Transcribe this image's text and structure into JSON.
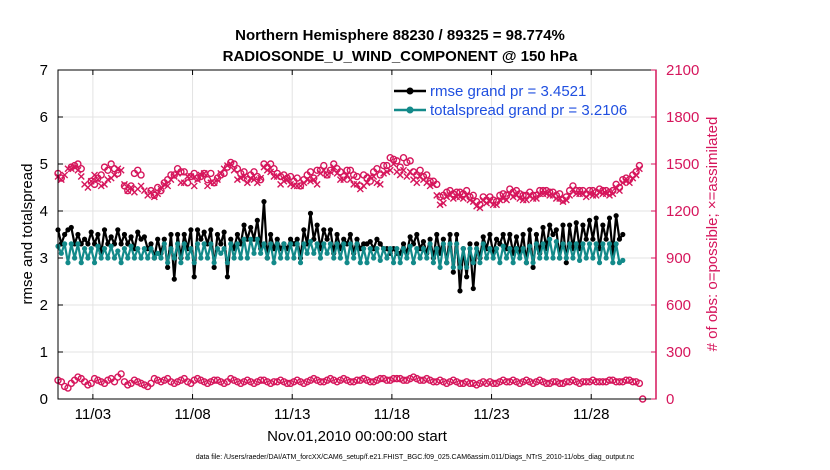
{
  "chart_data": {
    "type": "line",
    "title": "Northern Hemisphere 88230 / 89325 = 98.774%",
    "subtitle": "RADIOSONDE_U_WIND_COMPONENT @ 150 hPa",
    "xlabel": "Nov.01,2010 00:00:00 start",
    "ylabel": "rmse and totalspread",
    "y2label": "# of obs: o=possible; ×=assimilated",
    "footnote": "data file: /Users/raeder/DAI/ATM_forcXX/CAM6_setup/f.e21.FHIST_BGC.f09_025.CAM6assim.011/Diags_NTrS_2010-11/obs_diag_output.nc",
    "xlim": [
      1.25,
      31.25
    ],
    "ylim": [
      0,
      7
    ],
    "y2lim": [
      0,
      2100
    ],
    "x_ticks": [
      3,
      8,
      13,
      18,
      23,
      28
    ],
    "x_tick_labels": [
      "11/03",
      "11/08",
      "11/13",
      "11/18",
      "11/23",
      "11/28"
    ],
    "y_ticks": [
      0,
      1,
      2,
      3,
      4,
      5,
      6,
      7
    ],
    "y2_ticks": [
      0,
      300,
      600,
      900,
      1200,
      1500,
      1800,
      2100
    ],
    "legend_location": "top-right",
    "colors": {
      "rmse": "#000000",
      "spread": "#138a8a",
      "obs": "#d6165c",
      "legend_text": "#1f4fe0"
    },
    "series": [
      {
        "name": "rmse grand pr = 3.4521",
        "axis": "left",
        "values": [
          3.6,
          3.3,
          3.5,
          3.6,
          3.65,
          3.3,
          3.5,
          3.3,
          3.4,
          3.3,
          3.55,
          3.3,
          3.5,
          3.1,
          3.6,
          3.3,
          3.45,
          3.3,
          3.6,
          3.3,
          3.5,
          3.3,
          3.45,
          3.2,
          3.55,
          3.4,
          3.45,
          3.2,
          3.3,
          3.0,
          3.4,
          3.1,
          3.4,
          2.8,
          3.5,
          2.55,
          3.5,
          3.0,
          3.5,
          3.2,
          3.6,
          2.6,
          3.6,
          3.4,
          3.55,
          3.3,
          3.6,
          2.8,
          3.5,
          3.3,
          3.55,
          2.6,
          3.4,
          3.2,
          3.5,
          3.3,
          3.7,
          3.4,
          3.65,
          3.4,
          3.8,
          3.2,
          4.2,
          3.0,
          3.5,
          3.2,
          3.4,
          3.2,
          3.3,
          3.2,
          3.4,
          3.3,
          3.4,
          3.0,
          3.6,
          3.3,
          3.95,
          3.4,
          3.7,
          3.2,
          3.6,
          3.4,
          3.6,
          3.1,
          3.5,
          3.2,
          3.4,
          3.3,
          3.5,
          3.1,
          3.4,
          3.2,
          3.3,
          3.3,
          3.35,
          3.2,
          3.4,
          3.3,
          3.2,
          3.2,
          3.1,
          3.2,
          3.1,
          3.1,
          3.3,
          3.1,
          3.45,
          3.3,
          3.5,
          3.2,
          3.35,
          3.1,
          3.4,
          3.0,
          3.5,
          3.1,
          3.4,
          2.9,
          3.5,
          2.7,
          3.5,
          2.3,
          3.2,
          2.6,
          3.3,
          2.35,
          3.3,
          3.0,
          3.45,
          3.2,
          3.5,
          3.1,
          3.4,
          3.3,
          3.5,
          3.2,
          3.5,
          3.1,
          3.45,
          3.1,
          3.5,
          2.9,
          3.6,
          2.8,
          3.5,
          3.1,
          3.65,
          3.2,
          3.7,
          3.5,
          3.6,
          3.0,
          3.7,
          2.9,
          3.7,
          3.2,
          3.75,
          3.2,
          3.7,
          3.4,
          3.8,
          3.4,
          3.85,
          3.2,
          3.7,
          3.4,
          3.85,
          3.1,
          3.9,
          3.4,
          3.5
        ]
      },
      {
        "name": "totalspread grand pr = 3.2106",
        "axis": "left",
        "values": [
          3.25,
          3.1,
          3.3,
          2.9,
          3.3,
          3.0,
          3.3,
          2.9,
          3.2,
          3.0,
          3.2,
          2.9,
          3.25,
          3.0,
          3.2,
          3.0,
          3.25,
          3.0,
          3.15,
          2.9,
          3.2,
          3.0,
          3.25,
          3.0,
          3.2,
          3.0,
          3.2,
          3.0,
          3.2,
          3.0,
          3.1,
          3.0,
          3.3,
          2.9,
          3.2,
          3.0,
          3.3,
          2.9,
          3.3,
          3.0,
          3.2,
          2.9,
          3.3,
          3.0,
          3.3,
          3.0,
          3.3,
          2.9,
          3.2,
          3.1,
          3.2,
          2.9,
          3.3,
          3.0,
          3.3,
          3.0,
          3.4,
          3.0,
          3.4,
          3.1,
          3.4,
          3.1,
          3.3,
          3.0,
          3.3,
          2.9,
          3.3,
          3.0,
          3.3,
          3.0,
          3.3,
          3.0,
          3.3,
          2.9,
          3.3,
          3.1,
          3.35,
          3.1,
          3.3,
          3.0,
          3.3,
          3.1,
          3.3,
          3.0,
          3.3,
          3.0,
          3.3,
          2.9,
          3.3,
          3.0,
          3.3,
          2.9,
          3.2,
          2.9,
          3.2,
          3.0,
          3.2,
          2.95,
          3.2,
          3.0,
          3.2,
          2.9,
          3.2,
          2.9,
          3.2,
          3.0,
          3.25,
          2.9,
          3.2,
          3.0,
          3.2,
          3.0,
          3.3,
          2.9,
          3.2,
          2.8,
          3.3,
          2.9,
          3.3,
          2.8,
          3.3,
          2.8,
          3.2,
          2.8,
          3.2,
          2.9,
          3.2,
          2.9,
          3.3,
          3.0,
          3.2,
          3.0,
          3.2,
          2.9,
          3.25,
          3.0,
          3.2,
          2.9,
          3.2,
          3.0,
          3.2,
          2.9,
          3.25,
          2.9,
          3.3,
          3.0,
          3.3,
          3.0,
          3.4,
          3.0,
          3.35,
          3.0,
          3.3,
          3.0,
          3.3,
          3.0,
          3.3,
          2.95,
          3.3,
          3.0,
          3.3,
          3.0,
          3.3,
          2.9,
          3.3,
          3.0,
          3.3,
          2.9,
          3.3,
          2.9,
          2.95
        ]
      },
      {
        "name": "possible",
        "axis": "right",
        "marker": "o",
        "values": [
          1440,
          1410,
          null,
          null,
          1480,
          1490,
          1500,
          1470,
          null,
          null,
          1390,
          1370,
          1410,
          1430,
          1480,
          1460,
          1500,
          1470,
          1440,
          null,
          1360,
          1330,
          1360,
          1440,
          1460,
          1430,
          null,
          null,
          1330,
          1300,
          1350,
          1330,
          1380,
          1400,
          1430,
          1430,
          1470,
          1450,
          1450,
          1380,
          1420,
          1440,
          1410,
          1420,
          1440,
          1400,
          1440,
          1380,
          1410,
          1430,
          1440,
          1480,
          1510,
          1500,
          1470,
          1440,
          1450,
          1400,
          1430,
          1450,
          1420,
          1400,
          1500,
          1480,
          1500,
          1470,
          1440,
          1420,
          1430,
          1410,
          1420,
          1390,
          1410,
          1360,
          1400,
          1430,
          1450,
          1410,
          1460,
          1460,
          1490,
          1430,
          1460,
          1500,
          1470,
          1450,
          1420,
          1460,
          1460,
          1430,
          1420,
          1360,
          1430,
          1410,
          1390,
          1450,
          1470,
          1430,
          1490,
          1490,
          1540,
          1530,
          1520,
          1480,
          1540,
          1510,
          1520,
          1450,
          1430,
          1460,
          1420,
          1430,
          1390,
          1390,
          1370,
          1290,
          1300,
          1320,
          1330,
          1310,
          1320,
          1320,
          1310,
          1330,
          1290,
          1300,
          1260,
          1240,
          1290,
          1270,
          1290,
          1270,
          1260,
          1300,
          1310,
          1300,
          1340,
          1320,
          1330,
          1310,
          1300,
          1300,
          1320,
          1300,
          1300,
          1330,
          1330,
          1330,
          1320,
          1320,
          1300,
          1310,
          1270,
          1290,
          1330,
          1360,
          1330,
          1330,
          1330,
          1310,
          1330,
          1330,
          1320,
          1340,
          1330,
          1330,
          1320,
          1330,
          1370,
          1350,
          1400,
          1410,
          1400,
          1430,
          1450,
          1490
        ]
      },
      {
        "name": "assimilated",
        "axis": "right",
        "marker": "x",
        "values": [
          1420,
          1400,
          1430,
          1470,
          1470,
          1480,
          1460,
          1420,
          1370,
          1350,
          1390,
          1430,
          1400,
          1360,
          1370,
          1400,
          1410,
          1430,
          1470,
          1460,
          1370,
          1330,
          1350,
          1320,
          1340,
          1360,
          1330,
          1300,
          1320,
          1290,
          1310,
          1340,
          1370,
          1360,
          1400,
          1420,
          1440,
          1380,
          1380,
          1420,
          1420,
          1360,
          1400,
          1430,
          1440,
          1360,
          1380,
          1380,
          1400,
          1440,
          1470,
          1490,
          1500,
          1460,
          1400,
          1410,
          1420,
          1380,
          1410,
          1400,
          1380,
          1410,
          1480,
          1460,
          1450,
          1420,
          1420,
          1370,
          1390,
          1400,
          1370,
          1360,
          1360,
          1360,
          1380,
          1400,
          1390,
          1400,
          1370,
          1440,
          1460,
          1430,
          1450,
          1480,
          1440,
          1400,
          1400,
          1430,
          1400,
          1370,
          1370,
          1340,
          1360,
          1380,
          1420,
          1420,
          1380,
          1370,
          1440,
          1450,
          1460,
          1500,
          1450,
          1430,
          1460,
          1420,
          1450,
          1400,
          1380,
          1420,
          1400,
          1380,
          1360,
          1370,
          1300,
          1240,
          1250,
          1290,
          1300,
          1280,
          1290,
          1290,
          1280,
          1300,
          1270,
          1260,
          1230,
          1220,
          1270,
          1250,
          1260,
          1240,
          1240,
          1270,
          1280,
          1270,
          1310,
          1290,
          1300,
          1280,
          1270,
          1270,
          1300,
          1280,
          1280,
          1310,
          1310,
          1310,
          1300,
          1300,
          1280,
          1280,
          1260,
          1270,
          1300,
          1340,
          1310,
          1310,
          1310,
          1290,
          1310,
          1300,
          1300,
          1320,
          1310,
          1310,
          1300,
          1310,
          1350,
          1330,
          1380,
          1390,
          1380,
          1410,
          1430,
          1470
        ]
      },
      {
        "name": "possible_low",
        "axis": "right",
        "marker": "o",
        "values": [
          120,
          110,
          80,
          70,
          100,
          120,
          140,
          130,
          110,
          90,
          100,
          130,
          120,
          110,
          100,
          120,
          130,
          110,
          140,
          160,
          110,
          90,
          100,
          120,
          110,
          100,
          90,
          80,
          100,
          130,
          120,
          110,
          120,
          130,
          110,
          100,
          110,
          120,
          130,
          110,
          100,
          120,
          130,
          120,
          110,
          100,
          110,
          120,
          120,
          110,
          100,
          110,
          130,
          120,
          110,
          100,
          110,
          120,
          110,
          100,
          110,
          120,
          120,
          110,
          100,
          110,
          110,
          120,
          110,
          100,
          100,
          110,
          120,
          110,
          100,
          110,
          120,
          130,
          120,
          110,
          110,
          120,
          130,
          120,
          110,
          120,
          130,
          120,
          110,
          110,
          120,
          120,
          130,
          120,
          110,
          110,
          120,
          130,
          130,
          120,
          120,
          130,
          130,
          130,
          120,
          120,
          130,
          140,
          130,
          120,
          120,
          130,
          120,
          110,
          110,
          120,
          110,
          100,
          110,
          120,
          110,
          100,
          100,
          110,
          100,
          100,
          90,
          100,
          110,
          100,
          110,
          100,
          100,
          110,
          120,
          110,
          110,
          120,
          110,
          100,
          110,
          120,
          110,
          100,
          110,
          120,
          110,
          100,
          100,
          110,
          110,
          100,
          100,
          110,
          110,
          120,
          110,
          100,
          110,
          110,
          110,
          120,
          110,
          110,
          110,
          110,
          120,
          120,
          110,
          110,
          110,
          120,
          120,
          110,
          110,
          100,
          0
        ]
      }
    ]
  }
}
